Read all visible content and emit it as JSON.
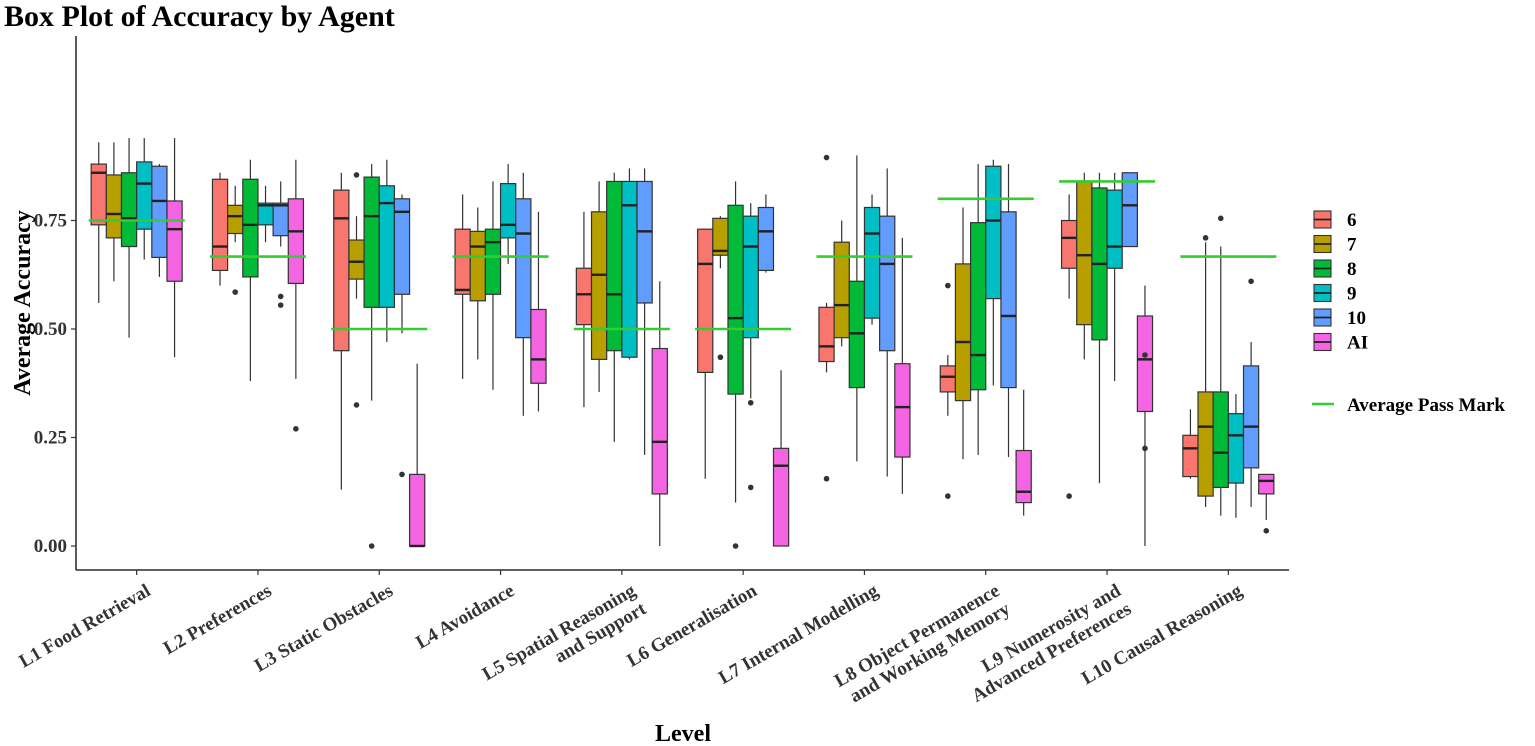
{
  "chart_data": {
    "type": "box",
    "title": "Box Plot of Accuracy by Agent",
    "xlabel": "Level",
    "ylabel": "Average Accuracy",
    "ylim": [
      -0.05,
      0.97
    ],
    "yticks": [
      "0.00",
      "0.25",
      "0.50",
      "0.75"
    ],
    "grid": false,
    "legend_position": "right",
    "categories": [
      [
        "L1 Food Retrieval"
      ],
      [
        "L2 Preferences"
      ],
      [
        "L3 Static Obstacles"
      ],
      [
        "L4 Avoidance"
      ],
      [
        "L5 Spatial Reasoning",
        "and Support"
      ],
      [
        "L6 Generalisation"
      ],
      [
        "L7 Internal Modelling"
      ],
      [
        "L8 Object Permanence",
        "and Working Memory"
      ],
      [
        "L9 Numerosity and",
        "Advanced Preferences"
      ],
      [
        "L10 Causal Reasoning"
      ]
    ],
    "series": [
      {
        "name": "6",
        "color": "#F8766D",
        "boxes": [
          {
            "wl": 0.56,
            "q1": 0.74,
            "med": 0.86,
            "q3": 0.88,
            "wh": 0.93,
            "out": []
          },
          {
            "wl": 0.6,
            "q1": 0.635,
            "med": 0.69,
            "q3": 0.845,
            "wh": 0.86,
            "out": []
          },
          {
            "wl": 0.13,
            "q1": 0.45,
            "med": 0.755,
            "q3": 0.82,
            "wh": 0.86,
            "out": []
          },
          {
            "wl": 0.385,
            "q1": 0.58,
            "med": 0.59,
            "q3": 0.73,
            "wh": 0.81,
            "out": []
          },
          {
            "wl": 0.32,
            "q1": 0.51,
            "med": 0.58,
            "q3": 0.64,
            "wh": 0.77,
            "out": []
          },
          {
            "wl": 0.155,
            "q1": 0.4,
            "med": 0.65,
            "q3": 0.73,
            "wh": 0.73,
            "out": []
          },
          {
            "wl": 0.4,
            "q1": 0.425,
            "med": 0.46,
            "q3": 0.55,
            "wh": 0.56,
            "out": [
              0.155,
              0.895
            ]
          },
          {
            "wl": 0.3,
            "q1": 0.355,
            "med": 0.39,
            "q3": 0.415,
            "wh": 0.44,
            "out": [
              0.115,
              0.6
            ]
          },
          {
            "wl": 0.57,
            "q1": 0.64,
            "med": 0.71,
            "q3": 0.75,
            "wh": 0.81,
            "out": [
              0.115
            ]
          },
          {
            "wl": 0.155,
            "q1": 0.16,
            "med": 0.225,
            "q3": 0.255,
            "wh": 0.315,
            "out": []
          }
        ]
      },
      {
        "name": "7",
        "color": "#B79F00",
        "boxes": [
          {
            "wl": 0.61,
            "q1": 0.71,
            "med": 0.765,
            "q3": 0.855,
            "wh": 0.93,
            "out": []
          },
          {
            "wl": 0.7,
            "q1": 0.72,
            "med": 0.76,
            "q3": 0.785,
            "wh": 0.83,
            "out": [
              0.585
            ]
          },
          {
            "wl": 0.57,
            "q1": 0.615,
            "med": 0.655,
            "q3": 0.705,
            "wh": 0.76,
            "out": [
              0.325,
              0.855
            ]
          },
          {
            "wl": 0.43,
            "q1": 0.565,
            "med": 0.69,
            "q3": 0.725,
            "wh": 0.78,
            "out": []
          },
          {
            "wl": 0.355,
            "q1": 0.43,
            "med": 0.625,
            "q3": 0.77,
            "wh": 0.84,
            "out": []
          },
          {
            "wl": 0.64,
            "q1": 0.67,
            "med": 0.68,
            "q3": 0.755,
            "wh": 0.76,
            "out": [
              0.435
            ]
          },
          {
            "wl": 0.46,
            "q1": 0.48,
            "med": 0.555,
            "q3": 0.7,
            "wh": 0.75,
            "out": []
          },
          {
            "wl": 0.2,
            "q1": 0.335,
            "med": 0.47,
            "q3": 0.65,
            "wh": 0.78,
            "out": []
          },
          {
            "wl": 0.43,
            "q1": 0.51,
            "med": 0.67,
            "q3": 0.84,
            "wh": 0.86,
            "out": []
          },
          {
            "wl": 0.09,
            "q1": 0.115,
            "med": 0.275,
            "q3": 0.355,
            "wh": 0.7,
            "out": [
              0.71
            ]
          }
        ]
      },
      {
        "name": "8",
        "color": "#00BA38",
        "boxes": [
          {
            "wl": 0.48,
            "q1": 0.69,
            "med": 0.755,
            "q3": 0.86,
            "wh": 0.94,
            "out": []
          },
          {
            "wl": 0.38,
            "q1": 0.62,
            "med": 0.74,
            "q3": 0.845,
            "wh": 0.89,
            "out": []
          },
          {
            "wl": 0.335,
            "q1": 0.55,
            "med": 0.76,
            "q3": 0.85,
            "wh": 0.88,
            "out": [
              0.0
            ]
          },
          {
            "wl": 0.36,
            "q1": 0.58,
            "med": 0.7,
            "q3": 0.73,
            "wh": 0.84,
            "out": []
          },
          {
            "wl": 0.24,
            "q1": 0.45,
            "med": 0.58,
            "q3": 0.84,
            "wh": 0.86,
            "out": []
          },
          {
            "wl": 0.1,
            "q1": 0.35,
            "med": 0.525,
            "q3": 0.785,
            "wh": 0.84,
            "out": [
              0.0
            ]
          },
          {
            "wl": 0.195,
            "q1": 0.365,
            "med": 0.49,
            "q3": 0.61,
            "wh": 0.9,
            "out": []
          },
          {
            "wl": 0.21,
            "q1": 0.36,
            "med": 0.44,
            "q3": 0.745,
            "wh": 0.88,
            "out": []
          },
          {
            "wl": 0.145,
            "q1": 0.475,
            "med": 0.65,
            "q3": 0.825,
            "wh": 0.86,
            "out": []
          },
          {
            "wl": 0.07,
            "q1": 0.135,
            "med": 0.215,
            "q3": 0.355,
            "wh": 0.69,
            "out": [
              0.755
            ]
          }
        ]
      },
      {
        "name": "9",
        "color": "#00BFC4",
        "boxes": [
          {
            "wl": 0.66,
            "q1": 0.73,
            "med": 0.835,
            "q3": 0.885,
            "wh": 0.94,
            "out": []
          },
          {
            "wl": 0.7,
            "q1": 0.74,
            "med": 0.785,
            "q3": 0.79,
            "wh": 0.83,
            "out": []
          },
          {
            "wl": 0.47,
            "q1": 0.55,
            "med": 0.79,
            "q3": 0.83,
            "wh": 0.89,
            "out": []
          },
          {
            "wl": 0.65,
            "q1": 0.71,
            "med": 0.74,
            "q3": 0.835,
            "wh": 0.88,
            "out": []
          },
          {
            "wl": 0.43,
            "q1": 0.435,
            "med": 0.785,
            "q3": 0.84,
            "wh": 0.87,
            "out": []
          },
          {
            "wl": 0.34,
            "q1": 0.48,
            "med": 0.69,
            "q3": 0.76,
            "wh": 0.79,
            "out": [
              0.33,
              0.135
            ]
          },
          {
            "wl": 0.51,
            "q1": 0.525,
            "med": 0.72,
            "q3": 0.78,
            "wh": 0.81,
            "out": []
          },
          {
            "wl": 0.37,
            "q1": 0.57,
            "med": 0.75,
            "q3": 0.875,
            "wh": 0.89,
            "out": []
          },
          {
            "wl": 0.38,
            "q1": 0.64,
            "med": 0.69,
            "q3": 0.82,
            "wh": 0.86,
            "out": []
          },
          {
            "wl": 0.065,
            "q1": 0.145,
            "med": 0.255,
            "q3": 0.305,
            "wh": 0.35,
            "out": []
          }
        ]
      },
      {
        "name": "10",
        "color": "#619CFF",
        "boxes": [
          {
            "wl": 0.62,
            "q1": 0.665,
            "med": 0.795,
            "q3": 0.875,
            "wh": 0.88,
            "out": []
          },
          {
            "wl": 0.69,
            "q1": 0.715,
            "med": 0.785,
            "q3": 0.79,
            "wh": 0.84,
            "out": [
              0.575,
              0.555
            ]
          },
          {
            "wl": 0.49,
            "q1": 0.58,
            "med": 0.77,
            "q3": 0.8,
            "wh": 0.81,
            "out": [
              0.165
            ]
          },
          {
            "wl": 0.3,
            "q1": 0.48,
            "med": 0.72,
            "q3": 0.8,
            "wh": 0.86,
            "out": []
          },
          {
            "wl": 0.21,
            "q1": 0.56,
            "med": 0.725,
            "q3": 0.84,
            "wh": 0.87,
            "out": []
          },
          {
            "wl": 0.63,
            "q1": 0.635,
            "med": 0.725,
            "q3": 0.78,
            "wh": 0.81,
            "out": []
          },
          {
            "wl": 0.16,
            "q1": 0.45,
            "med": 0.65,
            "q3": 0.76,
            "wh": 0.87,
            "out": []
          },
          {
            "wl": 0.205,
            "q1": 0.365,
            "med": 0.53,
            "q3": 0.77,
            "wh": 0.88,
            "out": []
          },
          {
            "wl": 0.69,
            "q1": 0.69,
            "med": 0.785,
            "q3": 0.86,
            "wh": 0.86,
            "out": []
          },
          {
            "wl": 0.09,
            "q1": 0.18,
            "med": 0.275,
            "q3": 0.415,
            "wh": 0.47,
            "out": [
              0.61
            ]
          }
        ]
      },
      {
        "name": "AI",
        "color": "#F564E3",
        "boxes": [
          {
            "wl": 0.435,
            "q1": 0.61,
            "med": 0.73,
            "q3": 0.795,
            "wh": 0.94,
            "out": []
          },
          {
            "wl": 0.385,
            "q1": 0.605,
            "med": 0.725,
            "q3": 0.8,
            "wh": 0.89,
            "out": [
              0.27
            ]
          },
          {
            "wl": 0.0,
            "q1": 0.0,
            "med": 0.0,
            "q3": 0.165,
            "wh": 0.42,
            "out": []
          },
          {
            "wl": 0.31,
            "q1": 0.375,
            "med": 0.43,
            "q3": 0.545,
            "wh": 0.77,
            "out": []
          },
          {
            "wl": 0.0,
            "q1": 0.12,
            "med": 0.24,
            "q3": 0.455,
            "wh": 0.61,
            "out": []
          },
          {
            "wl": 0.0,
            "q1": 0.0,
            "med": 0.185,
            "q3": 0.225,
            "wh": 0.405,
            "out": []
          },
          {
            "wl": 0.12,
            "q1": 0.205,
            "med": 0.32,
            "q3": 0.42,
            "wh": 0.71,
            "out": []
          },
          {
            "wl": 0.07,
            "q1": 0.1,
            "med": 0.125,
            "q3": 0.22,
            "wh": 0.36,
            "out": []
          },
          {
            "wl": 0.0,
            "q1": 0.31,
            "med": 0.43,
            "q3": 0.53,
            "wh": 0.6,
            "out": [
              0.44,
              0.225
            ]
          },
          {
            "wl": 0.06,
            "q1": 0.12,
            "med": 0.15,
            "q3": 0.165,
            "wh": 0.165,
            "out": [
              0.035
            ]
          }
        ]
      }
    ],
    "pass_marks": [
      0.75,
      0.667,
      0.5,
      0.667,
      0.5,
      0.5,
      0.667,
      0.8,
      0.84,
      0.667
    ],
    "pass_mark_color": "#33CC33",
    "pass_mark_label": "Average Pass Mark"
  }
}
